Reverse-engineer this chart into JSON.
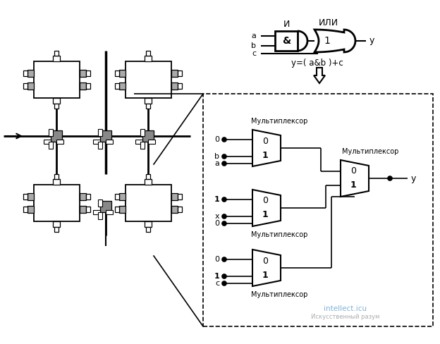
{
  "bg_color": "#ffffff",
  "fig_width": 6.24,
  "fig_height": 4.88,
  "dpi": 100,
  "watermark_text": "intellect.icu",
  "watermark_subtext": "Искусственный разум",
  "formula_text": "y=( a&b )+c",
  "output_label": "y",
  "and_label": "&",
  "or_label": "1",
  "and_title": "И",
  "or_title": "ИЛИ",
  "mux_label": "Мультиплексор",
  "line_color": "#000000",
  "gate_fill": "#ffffff",
  "gray_fill": "#aaaaaa",
  "dark_gray": "#888888"
}
